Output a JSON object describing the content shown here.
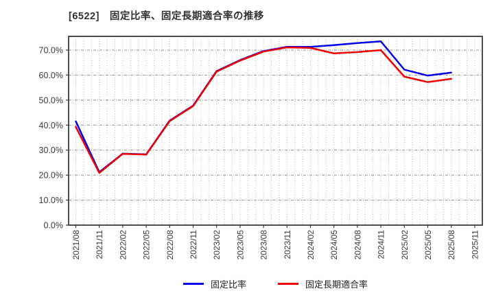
{
  "title": "[6522]　固定比率、固定長期適合率の推移",
  "chart_data": {
    "type": "line",
    "title": "[6522]　固定比率、固定長期適合率の推移",
    "categories": [
      "2021/08",
      "2021/11",
      "2022/02",
      "2022/05",
      "2022/08",
      "2022/11",
      "2023/02",
      "2023/05",
      "2023/08",
      "2023/11",
      "2024/02",
      "2024/05",
      "2024/08",
      "2024/11",
      "2025/02",
      "2025/05",
      "2025/08",
      "2025/11"
    ],
    "series": [
      {
        "name": "固定比率",
        "color": "#0000ee",
        "values": [
          41.5,
          21.2,
          28.6,
          28.3,
          41.8,
          47.8,
          61.6,
          66.0,
          69.6,
          71.3,
          71.3,
          72.0,
          72.8,
          73.5,
          62.2,
          59.8,
          61.0
        ]
      },
      {
        "name": "固定長期適合率",
        "color": "#ee0000",
        "values": [
          39.3,
          20.9,
          28.5,
          28.2,
          41.6,
          47.6,
          61.4,
          65.8,
          69.4,
          71.1,
          70.9,
          68.7,
          69.2,
          70.0,
          59.4,
          57.2,
          58.5
        ]
      }
    ],
    "xlabel": "",
    "ylabel": "",
    "ylim": [
      0,
      75.5
    ],
    "ytick_values": [
      0,
      10,
      20,
      30,
      40,
      50,
      60,
      70
    ],
    "ytick_labels": [
      "0.0%",
      "10.0%",
      "20.0%",
      "30.0%",
      "40.0%",
      "50.0%",
      "60.0%",
      "70.0%"
    ],
    "grid": "both",
    "legend_position": "bottom"
  },
  "colors": {
    "frame": "#3a3a3a",
    "h_grid": "#909090",
    "v_grid": "#b8b8b8",
    "tick_text": "#3a3a3a"
  }
}
